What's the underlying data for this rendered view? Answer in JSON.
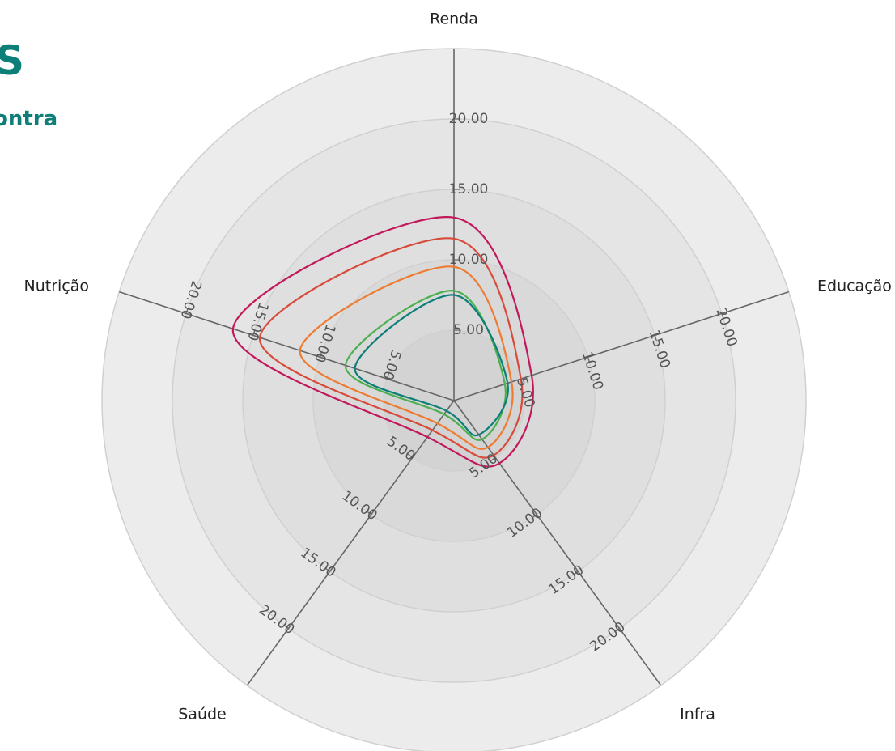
{
  "header": {
    "title": "S",
    "subtitle": "ontra"
  },
  "chart_data": {
    "type": "radar",
    "axes": [
      "Renda",
      "Educação",
      "Infra",
      "Saúde",
      "Nutrição"
    ],
    "rlim": [
      0,
      25
    ],
    "ticks": [
      5,
      10,
      15,
      20
    ],
    "tick_labels": [
      "5.00",
      "10.00",
      "15.00",
      "20.00"
    ],
    "grid": true,
    "curve": "smooth-closed",
    "series": [
      {
        "color": "#c2185b",
        "values": [
          13.0,
          5.8,
          5.5,
          3.2,
          16.5
        ]
      },
      {
        "color": "#d84a3a",
        "values": [
          11.5,
          5.0,
          4.8,
          2.6,
          14.5
        ]
      },
      {
        "color": "#ee7b30",
        "values": [
          9.5,
          4.3,
          4.1,
          2.0,
          11.5
        ]
      },
      {
        "color": "#4caf50",
        "values": [
          7.8,
          3.8,
          3.4,
          1.2,
          8.1
        ]
      },
      {
        "color": "#0e7f78",
        "values": [
          7.5,
          4.0,
          3.0,
          0.9,
          7.4
        ]
      }
    ],
    "colors": {
      "axis": "#666666",
      "grid": "#d0d0d0",
      "background_rings": [
        "#d3d3d3",
        "#d9d9d9",
        "#dfdfdf",
        "#e5e5e5",
        "#ececec"
      ]
    }
  }
}
